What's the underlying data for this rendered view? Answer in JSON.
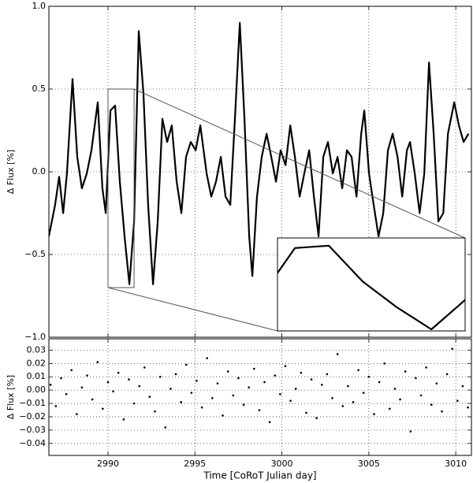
{
  "chart_data": [
    {
      "type": "line",
      "y_label": "Δ Flux [%]",
      "color": "#000000",
      "xlim": [
        2986.6,
        3010.9
      ],
      "ylim": [
        -1.0,
        1.0
      ],
      "yticks": [
        {
          "value": 1.0,
          "label": "1.0"
        },
        {
          "value": 0.5,
          "label": "0.5"
        },
        {
          "value": 0.0,
          "label": "0.0"
        },
        {
          "value": -0.5,
          "label": "−0.5"
        },
        {
          "value": -1.0,
          "label": "−1.0"
        }
      ],
      "grid": true,
      "inset": {
        "xlim": [
          2990.0,
          2991.5
        ],
        "ylim": [
          -0.7,
          0.5
        ]
      },
      "x": [
        2986.6,
        2986.96,
        2987.19,
        2987.42,
        2987.64,
        2987.96,
        2988.23,
        2988.5,
        2988.78,
        2989.05,
        2989.41,
        2989.68,
        2989.87,
        2990.14,
        2990.41,
        2990.68,
        2990.95,
        2991.23,
        2991.5,
        2991.77,
        2992.04,
        2992.31,
        2992.59,
        2992.86,
        2993.13,
        2993.4,
        2993.67,
        2993.95,
        2994.22,
        2994.49,
        2994.76,
        2995.04,
        2995.31,
        2995.67,
        2995.94,
        2996.21,
        2996.49,
        2996.76,
        2997.03,
        2997.3,
        2997.58,
        2997.85,
        2998.12,
        2998.3,
        2998.57,
        2998.84,
        2999.12,
        2999.39,
        2999.66,
        2999.93,
        3000.21,
        3000.48,
        3000.75,
        3001.02,
        3001.29,
        3001.57,
        3001.84,
        3002.11,
        3002.38,
        3002.65,
        3002.93,
        3003.2,
        3003.47,
        3003.74,
        3004.01,
        3004.29,
        3004.56,
        3004.74,
        3005.01,
        3005.28,
        3005.56,
        3005.83,
        3006.1,
        3006.37,
        3006.65,
        3006.92,
        3007.19,
        3007.37,
        3007.64,
        3007.92,
        3008.19,
        3008.46,
        3008.73,
        3009.0,
        3009.28,
        3009.55,
        3009.91,
        3010.18,
        3010.45,
        3010.73
      ],
      "values": [
        -0.39,
        -0.2,
        -0.03,
        -0.25,
        -0.01,
        0.56,
        0.09,
        -0.1,
        -0.01,
        0.13,
        0.42,
        -0.1,
        -0.25,
        0.37,
        0.4,
        -0.06,
        -0.39,
        -0.68,
        -0.3,
        0.85,
        0.47,
        -0.2,
        -0.68,
        -0.3,
        0.32,
        0.18,
        0.28,
        -0.06,
        -0.25,
        0.09,
        0.18,
        0.13,
        0.28,
        -0.01,
        -0.15,
        -0.06,
        0.09,
        -0.15,
        -0.2,
        0.32,
        0.9,
        0.32,
        -0.39,
        -0.63,
        -0.15,
        0.09,
        0.23,
        0.09,
        -0.06,
        0.13,
        0.04,
        0.28,
        0.09,
        -0.15,
        -0.01,
        0.13,
        -0.15,
        -0.39,
        0.09,
        0.18,
        -0.01,
        0.09,
        -0.1,
        0.13,
        0.09,
        -0.15,
        0.23,
        0.37,
        -0.01,
        -0.2,
        -0.39,
        -0.25,
        0.13,
        0.23,
        0.09,
        -0.15,
        0.13,
        0.18,
        -0.01,
        -0.25,
        -0.01,
        0.66,
        0.23,
        -0.3,
        -0.25,
        0.23,
        0.42,
        0.28,
        0.18,
        0.23
      ]
    },
    {
      "type": "scatter",
      "y_label": "Δ Flux [%]",
      "x_label": "Time [CoRoT Julian day]",
      "color": "#000000",
      "xlim": [
        2986.6,
        3010.9
      ],
      "xticks": [
        2990,
        2995,
        3000,
        3005,
        3010
      ],
      "ylim": [
        -0.049,
        0.0385
      ],
      "yticks": [
        0.03,
        0.02,
        0.01,
        {
          "value": 0.0,
          "label": "0.00"
        },
        {
          "value": -0.01,
          "label": "−0.01"
        },
        {
          "value": -0.02,
          "label": "−0.02"
        },
        {
          "value": -0.03,
          "label": "−0.03"
        },
        {
          "value": -0.04,
          "label": "−0.04"
        }
      ],
      "grid": true,
      "x": [
        2986.7,
        2987.0,
        2987.3,
        2987.6,
        2987.9,
        2988.2,
        2988.5,
        2988.8,
        2989.1,
        2989.4,
        2989.7,
        2990.0,
        2990.3,
        2990.6,
        2990.9,
        2991.2,
        2991.5,
        2991.8,
        2992.1,
        2992.4,
        2992.7,
        2993.0,
        2993.3,
        2993.6,
        2993.9,
        2994.2,
        2994.5,
        2994.8,
        2995.1,
        2995.4,
        2995.7,
        2996.0,
        2996.3,
        2996.6,
        2996.9,
        2997.2,
        2997.5,
        2997.8,
        2998.1,
        2998.4,
        2998.7,
        2999.0,
        2999.3,
        2999.6,
        2999.9,
        3000.2,
        3000.5,
        3000.8,
        3001.1,
        3001.4,
        3001.7,
        3002.0,
        3002.3,
        3002.6,
        3002.9,
        3003.2,
        3003.5,
        3003.8,
        3004.1,
        3004.4,
        3004.7,
        3005.0,
        3005.3,
        3005.6,
        3005.9,
        3006.2,
        3006.5,
        3006.8,
        3007.1,
        3007.4,
        3007.7,
        3008.0,
        3008.3,
        3008.6,
        3008.9,
        3009.2,
        3009.5,
        3009.8,
        3010.1,
        3010.4,
        3010.7
      ],
      "values": [
        0.004,
        -0.012,
        0.009,
        -0.003,
        0.015,
        -0.018,
        0.002,
        0.011,
        -0.007,
        0.021,
        -0.014,
        0.006,
        -0.001,
        0.013,
        -0.022,
        0.008,
        -0.01,
        0.003,
        0.017,
        -0.005,
        -0.016,
        0.01,
        -0.028,
        0.001,
        0.012,
        -0.009,
        0.019,
        -0.002,
        0.007,
        -0.013,
        0.024,
        -0.006,
        0.005,
        -0.019,
        0.014,
        -0.004,
        0.009,
        -0.011,
        0.002,
        0.016,
        -0.015,
        0.006,
        -0.024,
        0.011,
        -0.003,
        0.018,
        -0.008,
        0.001,
        0.013,
        -0.017,
        0.008,
        -0.021,
        0.004,
        0.012,
        -0.006,
        0.027,
        -0.012,
        0.003,
        -0.009,
        0.015,
        -0.002,
        0.01,
        -0.018,
        0.006,
        0.02,
        -0.014,
        0.001,
        -0.007,
        0.014,
        -0.031,
        0.009,
        -0.004,
        0.017,
        -0.011,
        0.005,
        -0.016,
        0.012,
        0.031,
        -0.008,
        0.003,
        -0.013
      ]
    }
  ]
}
